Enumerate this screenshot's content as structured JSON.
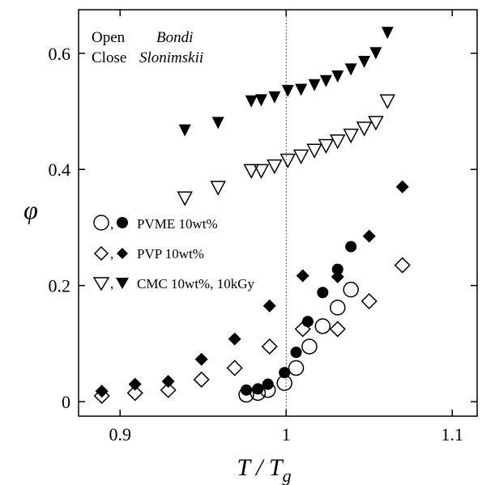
{
  "chart_data": {
    "type": "scatter",
    "xlabel": "T / Tg",
    "ylabel": "φ",
    "xlim": [
      0.875,
      1.115
    ],
    "ylim": [
      -0.025,
      0.675
    ],
    "xticks": [
      0.9,
      1.0,
      1.1
    ],
    "xtick_labels": [
      "0.9",
      "1",
      "1.1"
    ],
    "yticks": [
      0,
      0.2,
      0.4,
      0.6
    ],
    "ytick_labels": [
      "0",
      "0.2",
      "0.4",
      "0.6"
    ],
    "reference_line_x": 1.0,
    "annotations": {
      "open_label": "Open",
      "open_method": "Bondi",
      "close_label": "Close",
      "close_method": "Slonimskii"
    },
    "legend": [
      {
        "open_marker": "○",
        "closed_marker": "●",
        "separator": ",",
        "label": "PVME 10wt%"
      },
      {
        "open_marker": "◇",
        "closed_marker": "◆",
        "separator": ",",
        "label": "PVP 10wt%"
      },
      {
        "open_marker": "▽",
        "closed_marker": "▼",
        "separator": ",",
        "label": "CMC 10wt%, 10kGy"
      }
    ],
    "series": [
      {
        "name": "PVME 10wt%",
        "marker": "circle",
        "fill": "open",
        "x": [
          0.976,
          0.983,
          0.989,
          0.999,
          1.006,
          1.014,
          1.022,
          1.031,
          1.039
        ],
        "y": [
          0.012,
          0.015,
          0.02,
          0.032,
          0.058,
          0.095,
          0.13,
          0.162,
          0.193
        ]
      },
      {
        "name": "PVME 10wt%",
        "marker": "circle",
        "fill": "closed",
        "x": [
          0.976,
          0.983,
          0.989,
          0.999,
          1.006,
          1.013,
          1.022,
          1.031,
          1.039
        ],
        "y": [
          0.02,
          0.022,
          0.03,
          0.05,
          0.085,
          0.138,
          0.188,
          0.228,
          0.267
        ]
      },
      {
        "name": "PVP 10wt%",
        "marker": "diamond",
        "fill": "open",
        "x": [
          0.889,
          0.909,
          0.929,
          0.949,
          0.969,
          0.99,
          1.01,
          1.031,
          1.05,
          1.07
        ],
        "y": [
          0.01,
          0.015,
          0.02,
          0.038,
          0.058,
          0.095,
          0.125,
          0.125,
          0.173,
          0.235
        ]
      },
      {
        "name": "PVP 10wt%",
        "marker": "diamond",
        "fill": "closed",
        "x": [
          0.889,
          0.909,
          0.929,
          0.949,
          0.969,
          0.99,
          1.01,
          1.031,
          1.05,
          1.07
        ],
        "y": [
          0.018,
          0.03,
          0.035,
          0.073,
          0.108,
          0.165,
          0.217,
          0.215,
          0.285,
          0.37
        ]
      },
      {
        "name": "CMC 10wt%, 10kGy",
        "marker": "triangle-down",
        "fill": "open",
        "x": [
          0.939,
          0.959,
          0.979,
          0.985,
          0.993,
          1.001,
          1.009,
          1.017,
          1.024,
          1.031,
          1.039,
          1.047,
          1.054,
          1.061
        ],
        "y": [
          0.35,
          0.368,
          0.397,
          0.397,
          0.405,
          0.415,
          0.422,
          0.432,
          0.44,
          0.448,
          0.458,
          0.47,
          0.48,
          0.517
        ]
      },
      {
        "name": "CMC 10wt%, 10kGy",
        "marker": "triangle-down",
        "fill": "closed",
        "x": [
          0.939,
          0.959,
          0.979,
          0.985,
          0.993,
          1.001,
          1.009,
          1.017,
          1.024,
          1.031,
          1.039,
          1.047,
          1.054,
          1.061
        ],
        "y": [
          0.467,
          0.48,
          0.517,
          0.519,
          0.524,
          0.535,
          0.537,
          0.545,
          0.552,
          0.56,
          0.572,
          0.585,
          0.6,
          0.635
        ]
      }
    ],
    "grid": false,
    "legend_position": "middle-left"
  }
}
